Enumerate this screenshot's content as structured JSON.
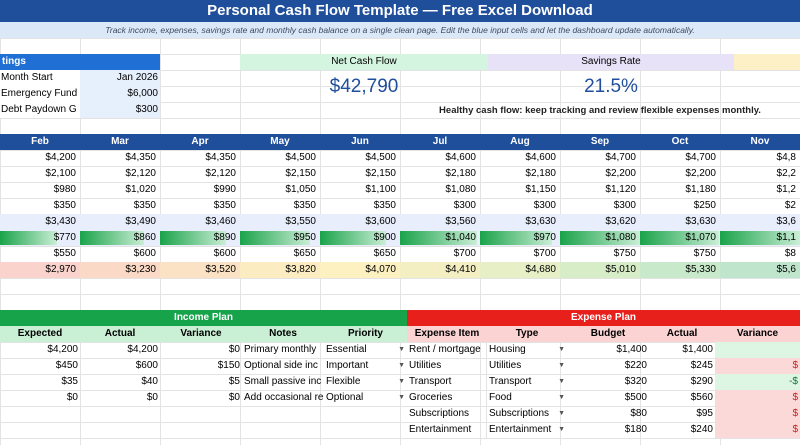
{
  "header": {
    "title": "Personal Cash Flow Template — Free Excel Download",
    "subtitle": "Track income, expenses, savings rate and monthly cash balance on a single clean page. Edit the blue input cells and let the dashboard update automatically."
  },
  "settings": {
    "heading": "tings",
    "rows": [
      {
        "label": "Month Start",
        "value": "Jan 2026"
      },
      {
        "label": "Emergency Fund",
        "value": "$6,000"
      },
      {
        "label": "Debt Paydown G",
        "value": "$300"
      }
    ]
  },
  "kpis": {
    "net_cash_flow_label": "Net Cash Flow",
    "net_cash_flow_value": "$42,790",
    "savings_rate_label": "Savings Rate",
    "savings_rate_value": "21.5%",
    "health_message": "Healthy cash flow: keep tracking and review flexible expenses monthly.",
    "colors": {
      "net": "#d4f5e0",
      "savings": "#e8e2f8",
      "third": "#fdefc6"
    }
  },
  "months": {
    "headers": [
      "Feb",
      "Mar",
      "Apr",
      "May",
      "Jun",
      "Jul",
      "Aug",
      "Sep",
      "Oct",
      "Nov"
    ],
    "rows": [
      {
        "type": "plain",
        "cells": [
          "$4,200",
          "$4,350",
          "$4,350",
          "$4,500",
          "$4,500",
          "$4,600",
          "$4,600",
          "$4,700",
          "$4,700",
          "$4,8"
        ]
      },
      {
        "type": "plain",
        "cells": [
          "$2,100",
          "$2,120",
          "$2,120",
          "$2,150",
          "$2,150",
          "$2,180",
          "$2,180",
          "$2,200",
          "$2,200",
          "$2,2"
        ]
      },
      {
        "type": "plain",
        "cells": [
          "$980",
          "$1,020",
          "$990",
          "$1,050",
          "$1,100",
          "$1,080",
          "$1,150",
          "$1,120",
          "$1,180",
          "$1,2"
        ]
      },
      {
        "type": "plain",
        "cells": [
          "$350",
          "$350",
          "$350",
          "$350",
          "$350",
          "$300",
          "$300",
          "$300",
          "$250",
          "$2"
        ]
      },
      {
        "type": "subtotal",
        "cells": [
          "$3,430",
          "$3,490",
          "$3,460",
          "$3,550",
          "$3,600",
          "$3,560",
          "$3,630",
          "$3,620",
          "$3,630",
          "$3,6"
        ]
      },
      {
        "type": "net",
        "cells": [
          "$770",
          "$860",
          "$890",
          "$950",
          "$900",
          "$1,040",
          "$970",
          "$1,080",
          "$1,070",
          "$1,1"
        ],
        "bar_level": [
          0.71,
          0.8,
          0.82,
          0.88,
          0.83,
          0.96,
          0.9,
          1.0,
          0.99,
          1.0
        ]
      },
      {
        "type": "plain",
        "cells": [
          "$550",
          "$600",
          "$600",
          "$650",
          "$650",
          "$700",
          "$700",
          "$750",
          "$750",
          "$8"
        ]
      },
      {
        "type": "balance",
        "cells": [
          "$2,970",
          "$3,230",
          "$3,520",
          "$3,820",
          "$4,070",
          "$4,410",
          "$4,680",
          "$5,010",
          "$5,330",
          "$5,6"
        ],
        "colors": [
          "#f9d3cc",
          "#fadac6",
          "#fbe2c4",
          "#fcecc2",
          "#fdf1c2",
          "#f4efc2",
          "#e6efc6",
          "#d7edc8",
          "#c8eacb",
          "#bfe6cc"
        ]
      }
    ]
  },
  "income_plan": {
    "title": "Income Plan",
    "columns": [
      "Expected",
      "Actual",
      "Variance",
      "Notes",
      "Priority"
    ],
    "rows": [
      {
        "expected": "$4,200",
        "actual": "$4,200",
        "variance": "$0",
        "notes": "Primary monthly",
        "priority": "Essential"
      },
      {
        "expected": "$450",
        "actual": "$600",
        "variance": "$150",
        "notes": "Optional side inc",
        "priority": "Important"
      },
      {
        "expected": "$35",
        "actual": "$40",
        "variance": "$5",
        "notes": "Small passive inc",
        "priority": "Flexible"
      },
      {
        "expected": "$0",
        "actual": "$0",
        "variance": "$0",
        "notes": "Add occasional re",
        "priority": "Optional"
      }
    ]
  },
  "expense_plan": {
    "title": "Expense Plan",
    "columns": [
      "Expense Item",
      "Type",
      "Budget",
      "Actual",
      "Variance"
    ],
    "rows": [
      {
        "item": "Rent / mortgage",
        "type": "Housing",
        "budget": "$1,400",
        "actual": "$1,400",
        "variance": "",
        "status": "pos"
      },
      {
        "item": "Utilities",
        "type": "Utilities",
        "budget": "$220",
        "actual": "$245",
        "variance": "$",
        "status": "neg"
      },
      {
        "item": "Transport",
        "type": "Transport",
        "budget": "$320",
        "actual": "$290",
        "variance": "-$",
        "status": "pos"
      },
      {
        "item": "Groceries",
        "type": "Food",
        "budget": "$500",
        "actual": "$560",
        "variance": "$",
        "status": "neg"
      },
      {
        "item": "Subscriptions",
        "type": "Subscriptions",
        "budget": "$80",
        "actual": "$95",
        "variance": "$",
        "status": "neg"
      },
      {
        "item": "Entertainment",
        "type": "Entertainment",
        "budget": "$180",
        "actual": "$240",
        "variance": "$",
        "status": "neg"
      }
    ]
  }
}
